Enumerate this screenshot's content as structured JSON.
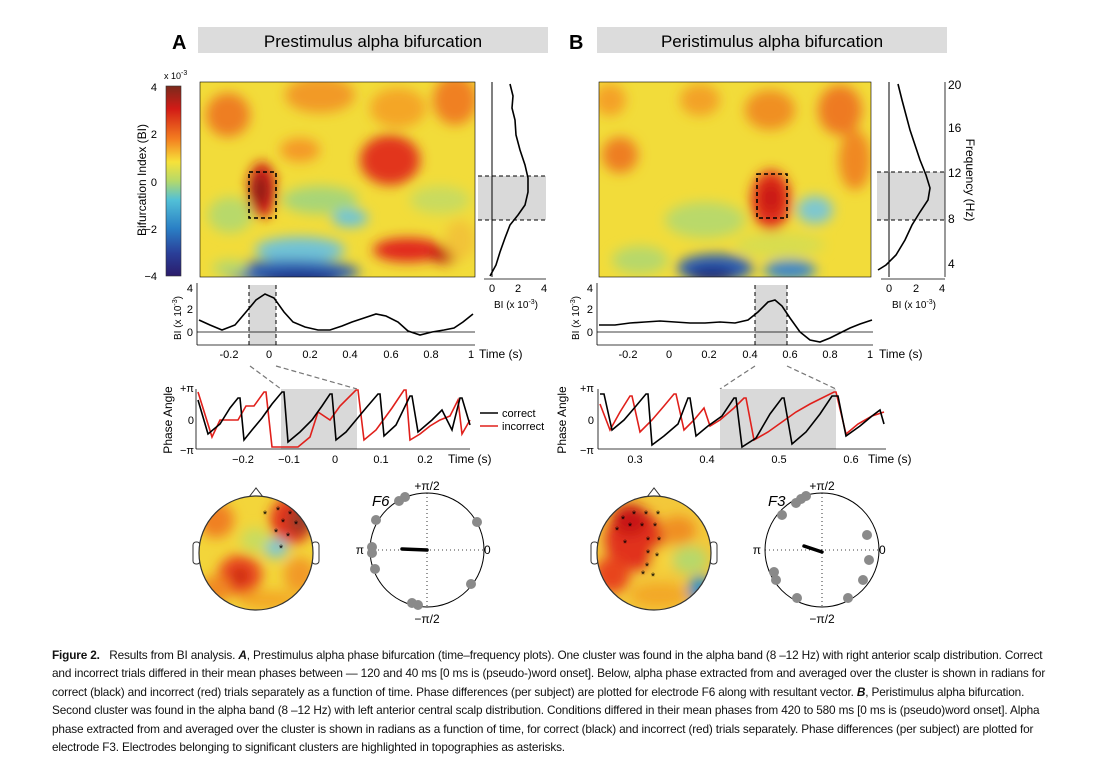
{
  "panels": {
    "a": {
      "letter": "A",
      "title": "Prestimulus alpha bifurcation",
      "colorbar": {
        "exponent": "x 10",
        "exponent_power": "-3",
        "ticks": [
          "4",
          "2",
          "0",
          "−2",
          "−4"
        ],
        "label": "Bifurcation Index (BI)"
      },
      "side_plot": {
        "ticks": [
          "0",
          "2",
          "4"
        ],
        "label": "BI (x 10",
        "label_power": "-3",
        "label_end": ")"
      },
      "bi_plot": {
        "ylabel": "BI (x 10",
        "ylabel_power": "-3",
        "ylabel_end": ")",
        "yticks": [
          "4",
          "2",
          "0"
        ],
        "xticks": [
          "-0.2",
          "0",
          "0.2",
          "0.4",
          "0.6",
          "0.8",
          "1"
        ],
        "xlabel": "Time (s)"
      },
      "phase_plot": {
        "ylabel": "Phase Angle",
        "yticks": [
          "+π",
          "0",
          "−π"
        ],
        "xticks": [
          "−0.2",
          "−0.1",
          "0",
          "0.1",
          "0.2"
        ],
        "xlabel": "Time (s)",
        "legend": [
          "correct",
          "incorrect"
        ]
      },
      "polar": {
        "electrode": "F6",
        "top": "+π/2",
        "bottom": "−π/2",
        "left": "π",
        "right": "0"
      }
    },
    "b": {
      "letter": "B",
      "title": "Peristimulus alpha bifurcation",
      "side_plot": {
        "ticks": [
          "0",
          "2",
          "4"
        ],
        "label": "BI (x 10",
        "label_power": "-3",
        "label_end": ")",
        "freq_ticks": [
          "20",
          "16",
          "12",
          "8",
          "4"
        ],
        "freq_label": "Frequency (Hz)"
      },
      "bi_plot": {
        "ylabel": "BI (x 10",
        "ylabel_power": "-3",
        "ylabel_end": ")",
        "yticks": [
          "4",
          "2",
          "0"
        ],
        "xticks": [
          "-0.2",
          "0",
          "0.2",
          "0.4",
          "0.6",
          "0.8",
          "1"
        ],
        "xlabel": "Time (s)"
      },
      "phase_plot": {
        "ylabel": "Phase Angle",
        "yticks": [
          "+π",
          "0",
          "−π"
        ],
        "xticks": [
          "0.3",
          "0.4",
          "0.5",
          "0.6"
        ],
        "xlabel": "Time (s)"
      },
      "polar": {
        "electrode": "F3",
        "top": "+π/2",
        "bottom": "−π/2",
        "left": "π",
        "right": "0"
      }
    }
  },
  "colors": {
    "correct": "#000000",
    "incorrect": "#e0201b",
    "highlight": "#d9d9d9",
    "title_band": "#dcdcdc",
    "dot": "#8a8a8a"
  },
  "caption": {
    "label": "Figure 2.",
    "intro": "Results from BI analysis.",
    "a_letter": "A",
    "a_text": ", Prestimulus alpha phase bifurcation (time–frequency plots). One cluster was found in the alpha band (8 –12 Hz) with right anterior scalp distribution. Correct and incorrect trials differed in their mean phases between — 120 and 40 ms [0 ms is (pseudo-)word onset]. Below, alpha phase extracted from and averaged over the cluster is shown in radians for correct (black) and incorrect (red) trials separately as a function of time. Phase differences (per subject) are plotted for electrode F6 along with resultant vector.",
    "b_letter": "B",
    "b_text": ", Peristimulus alpha bifurcation. Second cluster was found in the alpha band (8 –12 Hz) with left anterior central scalp distribution. Conditions differed in their mean phases from 420 to 580 ms [0 ms is (pseudo)word onset]. Alpha phase extracted from and averaged over the cluster is shown in radians as a function of time, for correct (black) and incorrect (red) trials separately. Phase differences (per subject) are plotted for electrode F3. Electrodes belonging to significant clusters are highlighted in topographies as asterisks."
  }
}
